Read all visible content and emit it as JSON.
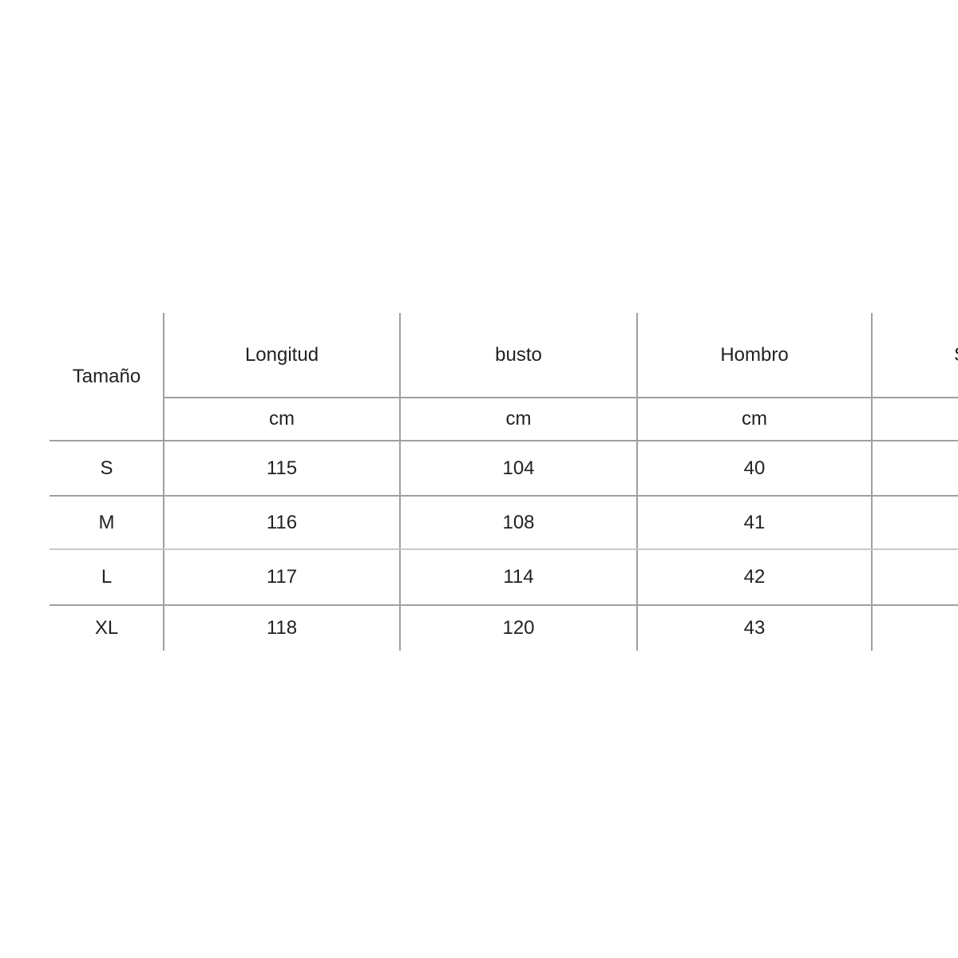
{
  "table": {
    "size_header": "Tamaño",
    "columns": [
      {
        "label": "Longitud",
        "unit": "cm"
      },
      {
        "label": "busto",
        "unit": "cm"
      },
      {
        "label": "Hombro",
        "unit": "cm"
      },
      {
        "label": "S",
        "unit": ""
      }
    ],
    "rows": [
      {
        "size": "S",
        "values": [
          "115",
          "104",
          "40",
          ""
        ]
      },
      {
        "size": "M",
        "values": [
          "116",
          "108",
          "41",
          ""
        ]
      },
      {
        "size": "L",
        "values": [
          "117",
          "114",
          "42",
          ""
        ]
      },
      {
        "size": "XL",
        "values": [
          "118",
          "120",
          "43",
          ""
        ]
      }
    ]
  }
}
